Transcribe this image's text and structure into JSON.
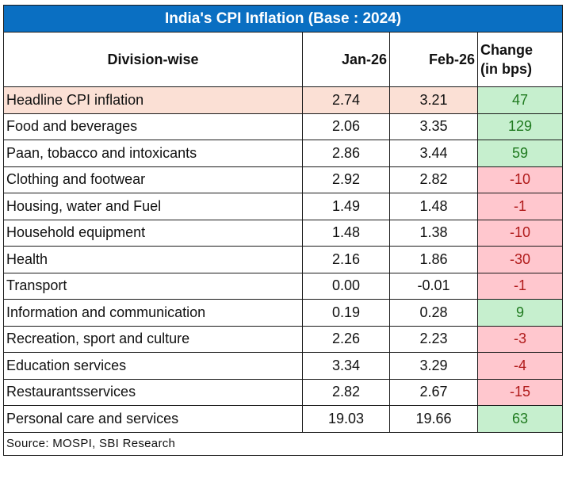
{
  "table": {
    "title": "India's CPI Inflation (Base : 2024)",
    "headers": {
      "division": "Division-wise",
      "jan": "Jan-26",
      "feb": "Feb-26",
      "change_line1": "Change",
      "change_line2": "(in bps)"
    },
    "rows": [
      {
        "name": "Headline CPI inflation",
        "jan": "2.74",
        "feb": "3.21",
        "change": "47",
        "direction": "pos"
      },
      {
        "name": "Food and beverages",
        "jan": "2.06",
        "feb": "3.35",
        "change": "129",
        "direction": "pos"
      },
      {
        "name": "Paan, tobacco and intoxicants",
        "jan": "2.86",
        "feb": "3.44",
        "change": "59",
        "direction": "pos"
      },
      {
        "name": "Clothing and footwear",
        "jan": "2.92",
        "feb": "2.82",
        "change": "-10",
        "direction": "neg"
      },
      {
        "name": "Housing, water and Fuel",
        "jan": "1.49",
        "feb": "1.48",
        "change": "-1",
        "direction": "neg"
      },
      {
        "name": "Household equipment",
        "jan": "1.48",
        "feb": "1.38",
        "change": "-10",
        "direction": "neg"
      },
      {
        "name": "Health",
        "jan": "2.16",
        "feb": "1.86",
        "change": "-30",
        "direction": "neg"
      },
      {
        "name": "Transport",
        "jan": "0.00",
        "feb": "-0.01",
        "change": "-1",
        "direction": "neg"
      },
      {
        "name": "Information and communication",
        "jan": "0.19",
        "feb": "0.28",
        "change": "9",
        "direction": "pos"
      },
      {
        "name": "Recreation, sport and culture",
        "jan": "2.26",
        "feb": "2.23",
        "change": "-3",
        "direction": "neg"
      },
      {
        "name": "Education services",
        "jan": "3.34",
        "feb": "3.29",
        "change": "-4",
        "direction": "neg"
      },
      {
        "name": "Restaurantsservices",
        "jan": "2.82",
        "feb": "2.67",
        "change": "-15",
        "direction": "neg"
      },
      {
        "name": "Personal care and  services",
        "jan": "19.03",
        "feb": "19.66",
        "change": "63",
        "direction": "pos"
      }
    ],
    "source": "Source: MOSPI, SBI Research"
  },
  "colors": {
    "title_bg": "#0a6fc2",
    "highlight_row_bg": "#fbe0d5",
    "positive_bg": "#c6efce",
    "positive_text": "#1f7a1f",
    "negative_bg": "#ffc7ce",
    "negative_text": "#b01a1a"
  }
}
